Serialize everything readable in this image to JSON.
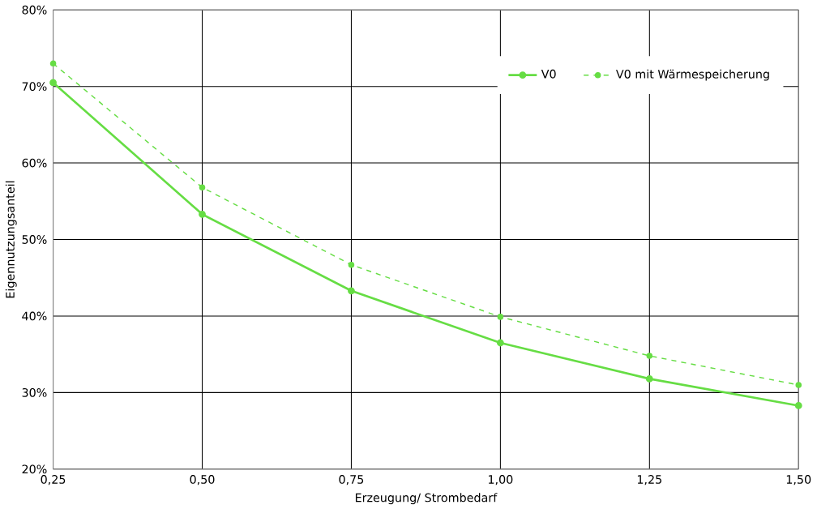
{
  "chart_data": {
    "type": "line",
    "xlabel": "Erzeugung/ Strombedarf",
    "ylabel": "Eigennutzungsanteil",
    "x": [
      0.25,
      0.5,
      0.75,
      1.0,
      1.25,
      1.5
    ],
    "series": [
      {
        "name": "V0",
        "color": "#66dd44",
        "values": [
          70.5,
          53.3,
          43.3,
          36.5,
          31.8,
          28.3
        ],
        "line_style": "solid"
      },
      {
        "name": "V0 mit Wärmespeicherung",
        "color": "#66dd44",
        "values": [
          73.0,
          56.8,
          46.7,
          39.9,
          34.8,
          31.0
        ],
        "line_style": "dashed"
      }
    ],
    "xlim": [
      0.25,
      1.5
    ],
    "ylim": [
      20,
      80
    ],
    "xticks": [
      {
        "value": 0.25,
        "label": "0,25"
      },
      {
        "value": 0.5,
        "label": "0,50"
      },
      {
        "value": 0.75,
        "label": "0,75"
      },
      {
        "value": 1.0,
        "label": "1,00"
      },
      {
        "value": 1.25,
        "label": "1,25"
      },
      {
        "value": 1.5,
        "label": "1,50"
      }
    ],
    "yticks": [
      {
        "value": 20,
        "label": "20%"
      },
      {
        "value": 30,
        "label": "30%"
      },
      {
        "value": 40,
        "label": "40%"
      },
      {
        "value": 50,
        "label": "50%"
      },
      {
        "value": 60,
        "label": "60%"
      },
      {
        "value": 70,
        "label": "70%"
      },
      {
        "value": 80,
        "label": "80%"
      }
    ],
    "grid": true,
    "legend": "top right",
    "marker": "circle"
  }
}
